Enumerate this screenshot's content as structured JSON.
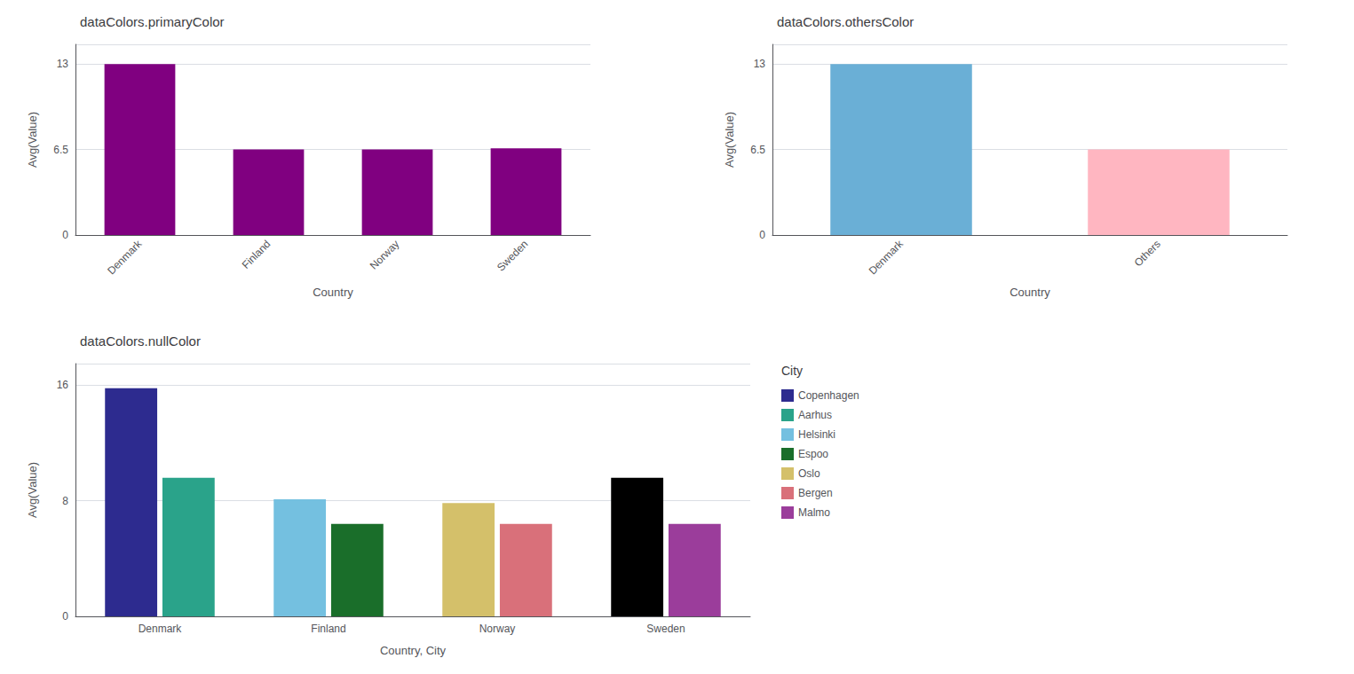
{
  "chart_data": [
    {
      "type": "bar",
      "title": "dataColors.primaryColor",
      "categories": [
        "Denmark",
        "Finland",
        "Norway",
        "Sweden"
      ],
      "values": [
        13,
        6.5,
        6.5,
        6.6
      ],
      "color": "#800080",
      "xlabel": "Country",
      "ylabel": "Avg(Value)",
      "ylim": [
        0,
        14.5
      ],
      "yticks": [
        0,
        6.5,
        13
      ],
      "grid": true
    },
    {
      "type": "bar",
      "title": "dataColors.othersColor",
      "categories": [
        "Denmark",
        "Others"
      ],
      "values": [
        13,
        6.5
      ],
      "colors": [
        "#6aafd6",
        "#ffb6c1"
      ],
      "xlabel": "Country",
      "ylabel": "Avg(Value)",
      "ylim": [
        0,
        14.5
      ],
      "yticks": [
        0,
        6.5,
        13
      ],
      "grid": true
    },
    {
      "type": "bar",
      "title": "dataColors.nullColor",
      "categories": [
        "Denmark",
        "Finland",
        "Norway",
        "Sweden"
      ],
      "series": [
        {
          "name": "Copenhagen",
          "color": "#2d2b8f",
          "values": [
            15.8,
            null,
            null,
            null
          ]
        },
        {
          "name": "Aarhus",
          "color": "#2aa38a",
          "values": [
            9.6,
            null,
            null,
            null
          ]
        },
        {
          "name": "Helsinki",
          "color": "#74c0e0",
          "values": [
            null,
            8.1,
            null,
            null
          ]
        },
        {
          "name": "Espoo",
          "color": "#1a6e2a",
          "values": [
            null,
            6.4,
            null,
            null
          ]
        },
        {
          "name": "Oslo",
          "color": "#d4c06a",
          "values": [
            null,
            null,
            7.85,
            null
          ]
        },
        {
          "name": "Bergen",
          "color": "#d9707a",
          "values": [
            null,
            null,
            6.4,
            null
          ]
        },
        {
          "name": null,
          "color": "#000000",
          "values": [
            null,
            null,
            null,
            9.6
          ]
        },
        {
          "name": "Malmo",
          "color": "#9b3d9b",
          "values": [
            null,
            null,
            null,
            6.4
          ]
        }
      ],
      "xlabel": "Country, City",
      "ylabel": "Avg(Value)",
      "ylim": [
        0,
        17.5
      ],
      "yticks": [
        0,
        8,
        16
      ],
      "grid": true,
      "legend": "right",
      "legend_title": "City"
    }
  ]
}
